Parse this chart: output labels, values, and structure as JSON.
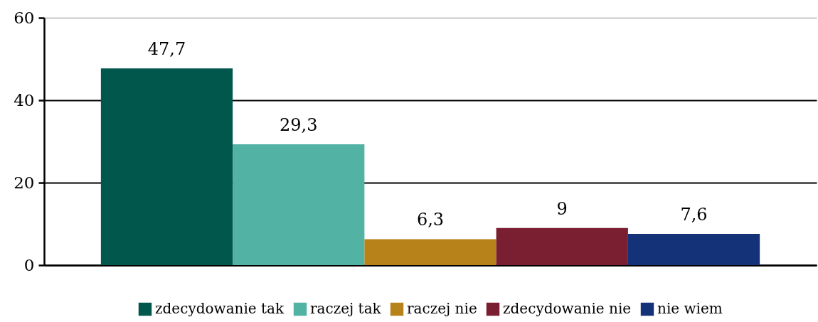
{
  "chart_data": {
    "type": "bar",
    "categories": [
      null
    ],
    "series": [
      {
        "name": "zdecydowanie tak",
        "color": "#01574b",
        "values": [
          47.7
        ],
        "value_labels": [
          "47,7"
        ]
      },
      {
        "name": "raczej tak",
        "color": "#52b2a4",
        "values": [
          29.3
        ],
        "value_labels": [
          "29,3"
        ]
      },
      {
        "name": "raczej nie",
        "color": "#b8821a",
        "values": [
          6.3
        ],
        "value_labels": [
          "6,3"
        ]
      },
      {
        "name": "zdecydowanie nie",
        "color": "#7a1f31",
        "values": [
          9
        ],
        "value_labels": [
          "9"
        ]
      },
      {
        "name": "nie wiem",
        "color": "#143278",
        "values": [
          7.6
        ],
        "value_labels": [
          "7,6"
        ]
      }
    ],
    "ylim": [
      0,
      60
    ],
    "yticks": [
      0,
      20,
      40,
      60
    ],
    "grid": "y",
    "legend": "bottom"
  }
}
